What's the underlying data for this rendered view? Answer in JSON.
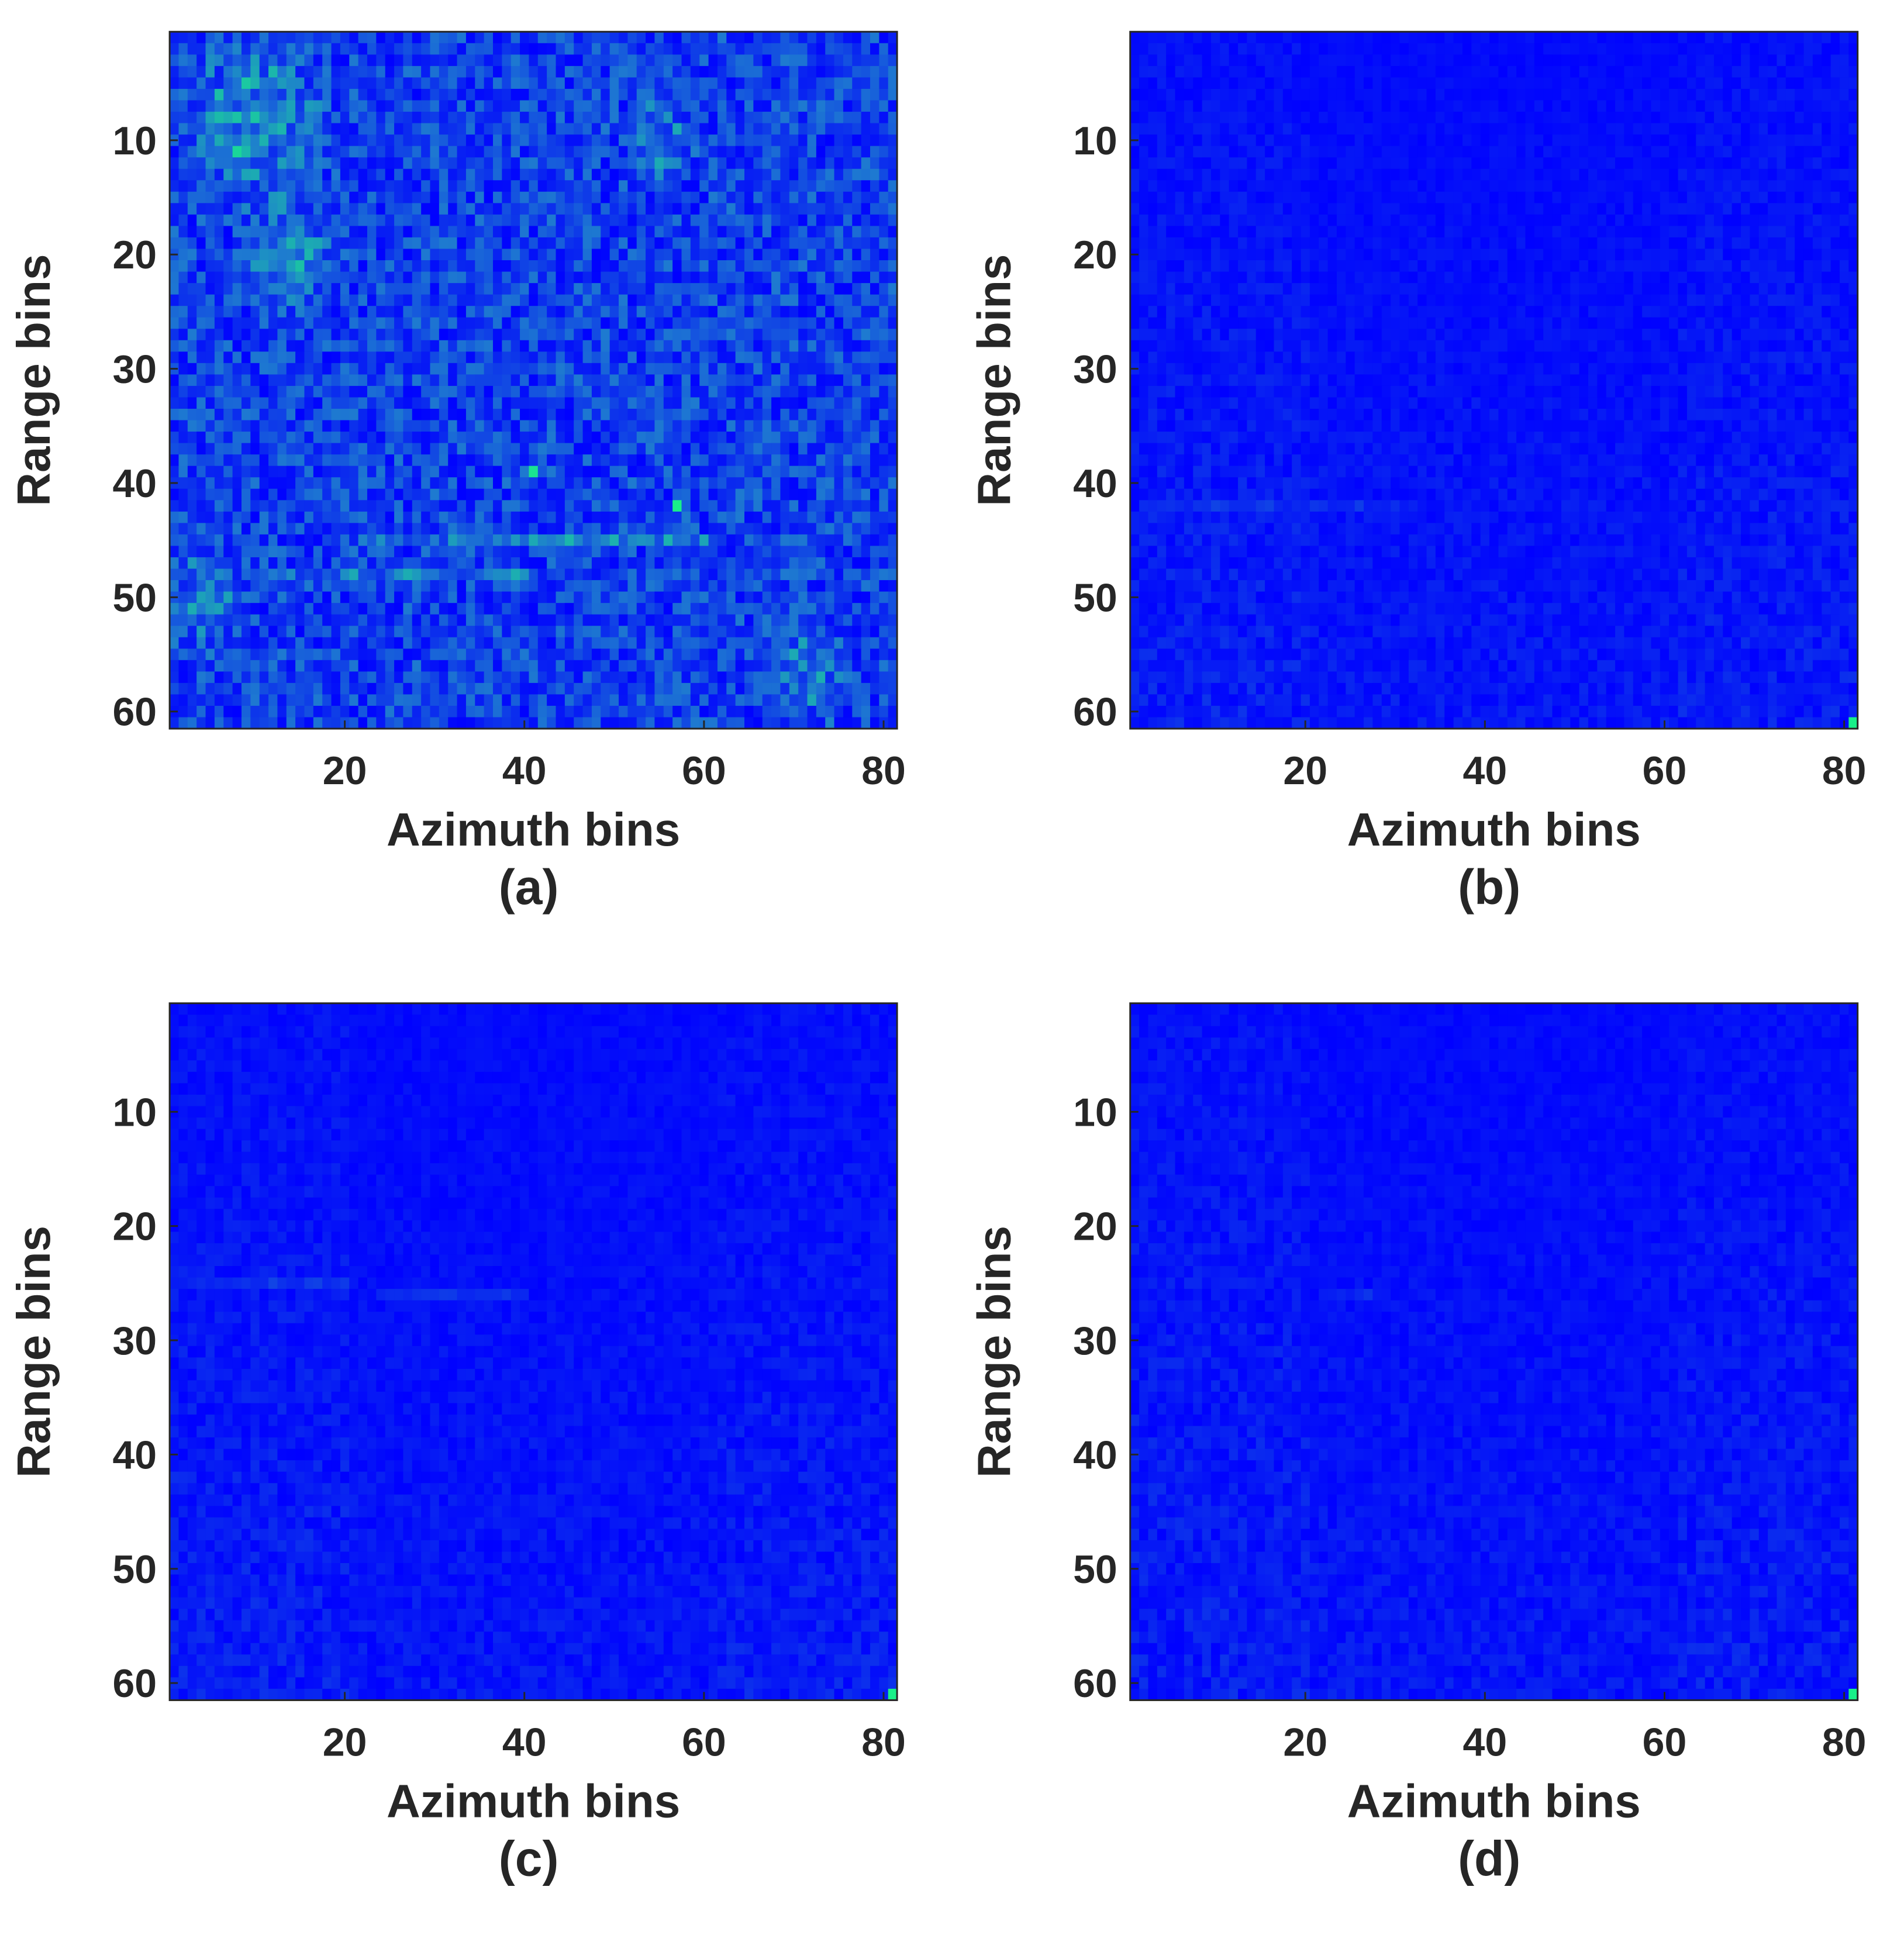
{
  "colormap": {
    "low": "#0000ff",
    "mid": "#1e7ad0",
    "high": "#19f089"
  },
  "chart_data": [
    {
      "type": "heatmap",
      "panel_label": "(a)",
      "xlabel": "Azimuth bins",
      "ylabel": "Range bins",
      "xlim": [
        1,
        81
      ],
      "ylim": [
        1,
        61
      ],
      "xticks": [
        "20",
        "40",
        "60",
        "80"
      ],
      "yticks": [
        "10",
        "20",
        "30",
        "40",
        "50",
        "60"
      ],
      "grid": false,
      "intensity": "high",
      "seed": 11,
      "features": [
        {
          "kind": "blob",
          "x": 10,
          "y": 8,
          "r": 9,
          "v": 0.45
        },
        {
          "kind": "blob",
          "x": 14,
          "y": 20,
          "r": 7,
          "v": 0.35
        },
        {
          "kind": "blob",
          "x": 55,
          "y": 10,
          "r": 5,
          "v": 0.3
        },
        {
          "kind": "blob",
          "x": 71,
          "y": 57,
          "r": 6,
          "v": 0.35
        },
        {
          "kind": "blob",
          "x": 4,
          "y": 50,
          "r": 6,
          "v": 0.3
        },
        {
          "kind": "row",
          "y": 45,
          "x0": 22,
          "x1": 60,
          "v": 0.25
        },
        {
          "kind": "row",
          "y": 48,
          "x0": 14,
          "x1": 40,
          "v": 0.2
        },
        {
          "kind": "spot",
          "x": 41,
          "y": 39,
          "v": 0.95
        },
        {
          "kind": "spot",
          "x": 57,
          "y": 42,
          "v": 1.0
        },
        {
          "kind": "spot",
          "x": 8,
          "y": 11,
          "v": 0.9
        },
        {
          "kind": "spot",
          "x": 9,
          "y": 5,
          "v": 0.85
        }
      ]
    },
    {
      "type": "heatmap",
      "panel_label": "(b)",
      "xlabel": "Azimuth bins",
      "ylabel": "Range bins",
      "xlim": [
        1,
        81
      ],
      "ylim": [
        1,
        61
      ],
      "xticks": [
        "20",
        "40",
        "60",
        "80"
      ],
      "yticks": [
        "10",
        "20",
        "30",
        "40",
        "50",
        "60"
      ],
      "grid": false,
      "intensity": "low",
      "seed": 23,
      "features": [
        {
          "kind": "row",
          "y": 42,
          "x0": 5,
          "x1": 30,
          "v": 0.12
        },
        {
          "kind": "spot",
          "x": 81,
          "y": 61,
          "v": 1.0
        }
      ]
    },
    {
      "type": "heatmap",
      "panel_label": "(c)",
      "xlabel": "Azimuth bins",
      "ylabel": "Range bins",
      "xlim": [
        1,
        81
      ],
      "ylim": [
        1,
        61
      ],
      "xticks": [
        "20",
        "40",
        "60",
        "80"
      ],
      "yticks": [
        "10",
        "20",
        "30",
        "40",
        "50",
        "60"
      ],
      "grid": false,
      "intensity": "low",
      "seed": 37,
      "features": [
        {
          "kind": "row",
          "y": 25,
          "x0": 3,
          "x1": 20,
          "v": 0.15
        },
        {
          "kind": "row",
          "y": 26,
          "x0": 24,
          "x1": 40,
          "v": 0.15
        },
        {
          "kind": "spot",
          "x": 81,
          "y": 61,
          "v": 1.0
        }
      ]
    },
    {
      "type": "heatmap",
      "panel_label": "(d)",
      "xlabel": "Azimuth bins",
      "ylabel": "Range bins",
      "xlim": [
        1,
        81
      ],
      "ylim": [
        1,
        61
      ],
      "xticks": [
        "20",
        "40",
        "60",
        "80"
      ],
      "yticks": [
        "10",
        "20",
        "30",
        "40",
        "50",
        "60"
      ],
      "grid": false,
      "intensity": "low",
      "seed": 53,
      "features": [
        {
          "kind": "row",
          "y": 26,
          "x0": 22,
          "x1": 27,
          "v": 0.12
        },
        {
          "kind": "spot",
          "x": 81,
          "y": 61,
          "v": 1.0
        }
      ]
    }
  ]
}
